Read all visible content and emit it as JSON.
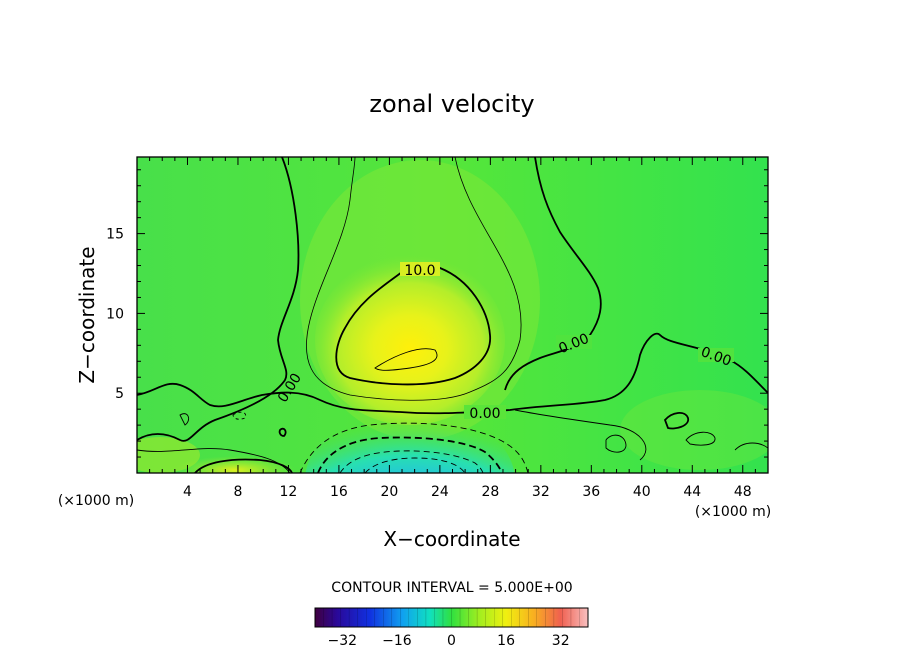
{
  "chart_data": {
    "type": "heatmap",
    "title": "zonal velocity",
    "xlabel": "X−coordinate",
    "ylabel": "Z−coordinate",
    "x_unit_left": "(×1000 m)",
    "x_unit_right": "(×1000 m)",
    "xlim": [
      0,
      50
    ],
    "ylim": [
      0,
      19.8
    ],
    "x_ticks": [
      "4",
      "8",
      "12",
      "16",
      "20",
      "24",
      "28",
      "32",
      "36",
      "40",
      "44",
      "48"
    ],
    "y_ticks": [
      "5",
      "10",
      "15"
    ],
    "contour_labels": [
      "10.0",
      "0.00",
      "0.00",
      "0.00",
      "0.00"
    ],
    "footer": "CONTOUR INTERVAL = 5.000E+00",
    "colorbar": {
      "range": [
        -40,
        40
      ],
      "ticks": [
        "−32",
        "−16",
        "0",
        "16",
        "32"
      ]
    },
    "features": [
      {
        "name": "jet maximum",
        "x": 22,
        "z": 7.5,
        "value": 15
      },
      {
        "name": "near-surface minimum",
        "x": 22,
        "z": 0.6,
        "value": -25
      }
    ]
  }
}
